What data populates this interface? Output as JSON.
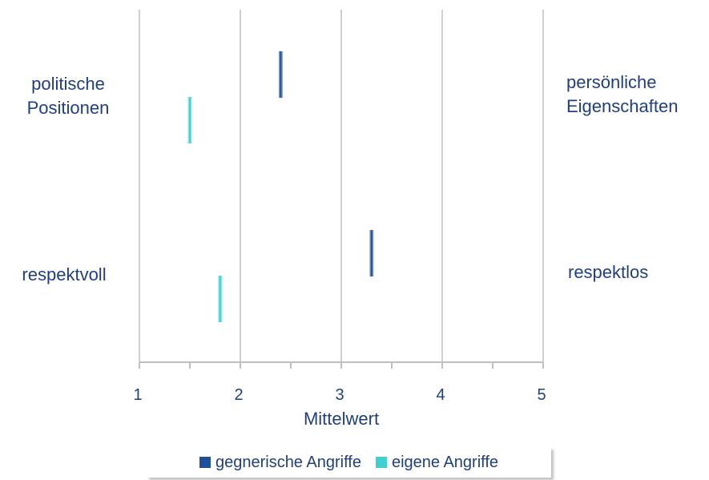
{
  "chart_data": {
    "type": "bar",
    "orientation": "horizontal",
    "xlabel": "Mittelwert",
    "xlim": [
      1,
      5
    ],
    "xticks": [
      1,
      2,
      3,
      4,
      5
    ],
    "grid": true,
    "legend_position": "bottom",
    "categories": [
      {
        "left": "politische\nPositionen",
        "right": "persönliche\nEigenschaften"
      },
      {
        "left": "respektvoll",
        "right": "respektlos"
      }
    ],
    "series": [
      {
        "name": "gegnerische Angriffe",
        "color": "#1f4e9a",
        "values": [
          2.4,
          3.3
        ]
      },
      {
        "name": "eigene Angriffe",
        "color": "#40d0d0",
        "values": [
          1.5,
          1.8
        ]
      }
    ]
  }
}
